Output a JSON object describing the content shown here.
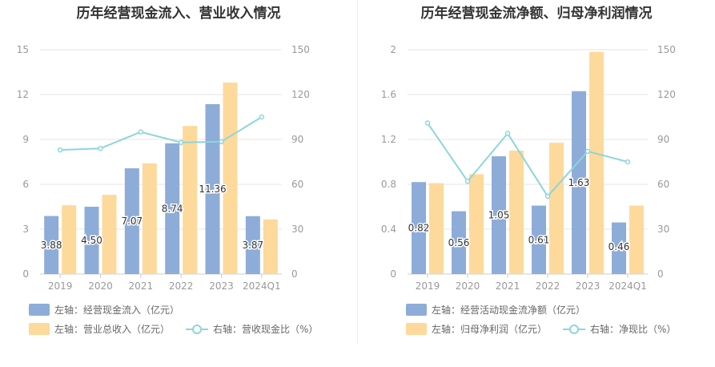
{
  "chart_data": [
    {
      "type": "bar",
      "title": "历年经营现金流入、营业收入情况",
      "categories": [
        "2019",
        "2020",
        "2021",
        "2022",
        "2023",
        "2024Q1"
      ],
      "y_left": {
        "ylim": [
          0,
          15
        ],
        "ticks": [
          "0",
          "3",
          "6",
          "9",
          "12",
          "15"
        ]
      },
      "y_right": {
        "ylim": [
          0,
          150
        ],
        "ticks": [
          "0",
          "30",
          "60",
          "90",
          "120",
          "150"
        ]
      },
      "grid": true,
      "legend_position": "bottom",
      "series": [
        {
          "name": "左轴：经营现金流入（亿元）",
          "axis": "left",
          "kind": "bar",
          "color": "#8eacd8",
          "values": [
            3.88,
            4.5,
            7.07,
            8.74,
            11.36,
            3.87
          ],
          "labels": [
            "3.88",
            "4.50",
            "7.07",
            "8.74",
            "11.36",
            "3.87"
          ]
        },
        {
          "name": "左轴：营业总收入（亿元）",
          "axis": "left",
          "kind": "bar",
          "color": "#fdd99b",
          "values": [
            4.6,
            5.3,
            7.4,
            9.9,
            12.8,
            3.65
          ]
        },
        {
          "name": "右轴：营收现金比（%）",
          "axis": "right",
          "kind": "line",
          "color": "#8cd6dc",
          "values": [
            83,
            84,
            95,
            88,
            88.5,
            105
          ]
        }
      ]
    },
    {
      "type": "bar",
      "title": "历年经营现金流净额、归母净利润情况",
      "categories": [
        "2019",
        "2020",
        "2021",
        "2022",
        "2023",
        "2024Q1"
      ],
      "y_left": {
        "ylim": [
          0,
          2
        ],
        "ticks": [
          "0",
          "0.4",
          "0.8",
          "1.2",
          "1.6",
          "2"
        ]
      },
      "y_right": {
        "ylim": [
          0,
          150
        ],
        "ticks": [
          "0",
          "30",
          "60",
          "90",
          "120",
          "150"
        ]
      },
      "grid": true,
      "legend_position": "bottom",
      "series": [
        {
          "name": "左轴：经营活动现金流净额（亿元）",
          "axis": "left",
          "kind": "bar",
          "color": "#8eacd8",
          "values": [
            0.82,
            0.56,
            1.05,
            0.61,
            1.63,
            0.46
          ],
          "labels": [
            "0.82",
            "0.56",
            "1.05",
            "0.61",
            "1.63",
            "0.46"
          ]
        },
        {
          "name": "左轴：归母净利润（亿元）",
          "axis": "left",
          "kind": "bar",
          "color": "#fdd99b",
          "values": [
            0.81,
            0.89,
            1.1,
            1.17,
            1.98,
            0.61
          ]
        },
        {
          "name": "右轴：净现比（%）",
          "axis": "right",
          "kind": "line",
          "color": "#8cd6dc",
          "values": [
            101,
            62,
            94,
            52,
            82,
            75
          ]
        }
      ]
    }
  ]
}
